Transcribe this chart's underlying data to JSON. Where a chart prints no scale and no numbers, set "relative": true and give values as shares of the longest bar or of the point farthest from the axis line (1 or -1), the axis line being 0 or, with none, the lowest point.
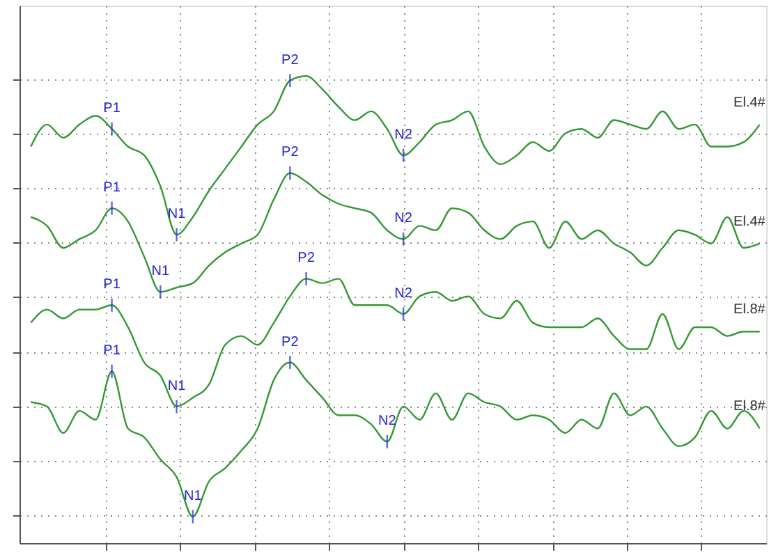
{
  "chart_data": {
    "type": "line",
    "relative": true,
    "grid": true,
    "tick_labels": false,
    "marker": "none",
    "line_style": "solid",
    "categories": [
      null,
      null,
      null,
      null,
      null,
      null,
      null,
      null,
      null,
      null,
      null,
      null,
      null,
      null,
      null,
      null,
      null,
      null,
      null,
      null,
      null,
      null,
      null,
      null,
      null,
      null,
      null,
      null,
      null,
      null,
      null,
      null,
      null,
      null,
      null,
      null,
      null,
      null,
      null,
      null,
      null,
      null,
      null,
      null,
      null,
      null
    ],
    "series": [
      {
        "name": "El.4#",
        "color": "#339933",
        "values": [
          0.84,
          0.89,
          0.86,
          0.89,
          0.91,
          0.88,
          0.84,
          0.82,
          0.75,
          0.64,
          0.68,
          0.74,
          0.79,
          0.84,
          0.89,
          0.92,
          0.99,
          1.0,
          0.97,
          0.93,
          0.9,
          0.92,
          0.88,
          0.82,
          0.85,
          0.89,
          0.9,
          0.92,
          0.84,
          0.8,
          0.82,
          0.85,
          0.83,
          0.87,
          0.88,
          0.86,
          0.9,
          0.89,
          0.88,
          0.92,
          0.88,
          0.89,
          0.84,
          0.84,
          0.85,
          0.89
        ]
      },
      {
        "name": "El.4#",
        "color": "#339933",
        "values": [
          0.68,
          0.66,
          0.61,
          0.63,
          0.65,
          0.7,
          0.67,
          0.59,
          0.51,
          0.52,
          0.53,
          0.57,
          0.6,
          0.62,
          0.64,
          0.72,
          0.78,
          0.76,
          0.73,
          0.71,
          0.7,
          0.69,
          0.65,
          0.63,
          0.66,
          0.65,
          0.7,
          0.69,
          0.65,
          0.63,
          0.66,
          0.67,
          0.61,
          0.67,
          0.63,
          0.65,
          0.62,
          0.6,
          0.57,
          0.61,
          0.65,
          0.64,
          0.62,
          0.68,
          0.61,
          0.62
        ]
      },
      {
        "name": "El.8#",
        "color": "#339933",
        "values": [
          0.44,
          0.47,
          0.45,
          0.47,
          0.47,
          0.48,
          0.43,
          0.35,
          0.32,
          0.25,
          0.27,
          0.3,
          0.39,
          0.41,
          0.39,
          0.44,
          0.5,
          0.54,
          0.53,
          0.54,
          0.48,
          0.48,
          0.48,
          0.46,
          0.5,
          0.51,
          0.49,
          0.5,
          0.46,
          0.45,
          0.49,
          0.44,
          0.43,
          0.43,
          0.43,
          0.45,
          0.41,
          0.38,
          0.38,
          0.46,
          0.38,
          0.43,
          0.43,
          0.41,
          0.42,
          0.42
        ]
      },
      {
        "name": "El.8#",
        "color": "#339933",
        "values": [
          0.26,
          0.25,
          0.19,
          0.24,
          0.22,
          0.33,
          0.2,
          0.18,
          0.13,
          0.09,
          0.0,
          0.08,
          0.11,
          0.15,
          0.2,
          0.31,
          0.35,
          0.31,
          0.27,
          0.23,
          0.23,
          0.21,
          0.17,
          0.25,
          0.22,
          0.28,
          0.22,
          0.28,
          0.26,
          0.25,
          0.22,
          0.23,
          0.22,
          0.19,
          0.22,
          0.2,
          0.28,
          0.23,
          0.25,
          0.2,
          0.16,
          0.18,
          0.24,
          0.2,
          0.24,
          0.2
        ]
      }
    ],
    "annotations": [
      {
        "text": "P1",
        "y": 0.88
      },
      {
        "text": "N1",
        "y": 0.64
      },
      {
        "text": "P2",
        "y": 0.99
      },
      {
        "text": "N2",
        "y": 0.82
      },
      {
        "text": "P1",
        "y": 0.7
      },
      {
        "text": "N1",
        "y": 0.51
      },
      {
        "text": "P2",
        "y": 0.78
      },
      {
        "text": "N2",
        "y": 0.63
      },
      {
        "text": "P1",
        "y": 0.48
      },
      {
        "text": "N1",
        "y": 0.25
      },
      {
        "text": "P2",
        "y": 0.54
      },
      {
        "text": "N2",
        "y": 0.46
      },
      {
        "text": "P1",
        "y": 0.33
      },
      {
        "text": "N1",
        "y": 0.0
      },
      {
        "text": "P2",
        "y": 0.35
      },
      {
        "text": "N2",
        "y": 0.17
      }
    ]
  }
}
